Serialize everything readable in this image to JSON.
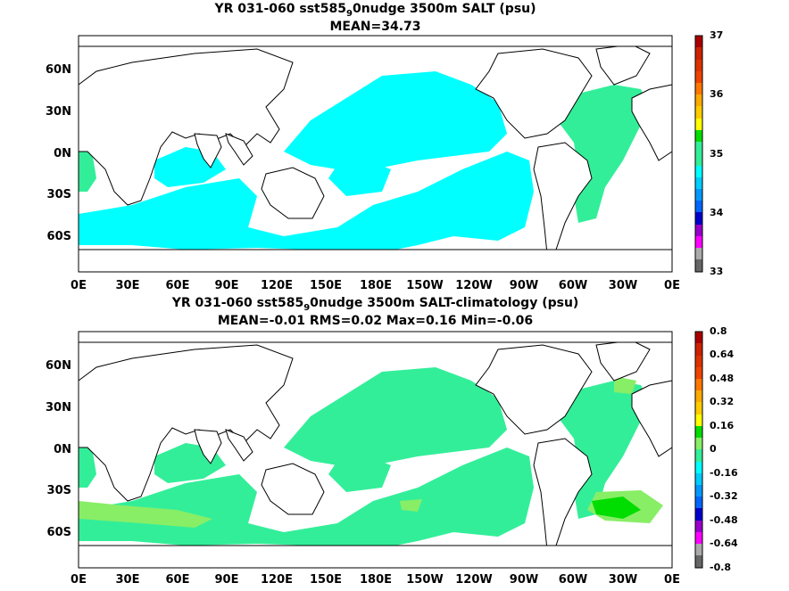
{
  "panels": [
    {
      "title_parts": [
        "YR 031-060 sst585",
        "9",
        "0nudge 3500m SALT (psu)"
      ],
      "subtitle": "MEAN=34.73",
      "colorbar_ticks": [
        "37",
        "36",
        "35",
        "34",
        "33"
      ]
    },
    {
      "title_parts": [
        "YR 031-060 sst585",
        "9",
        "0nudge 3500m SALT-climatology (psu)"
      ],
      "subtitle": "MEAN=-0.01   RMS=0.02   Max=0.16   Min=-0.06",
      "colorbar_ticks": [
        "0.8",
        "0.64",
        "0.48",
        "0.32",
        "0.16",
        "0",
        "-0.16",
        "-0.32",
        "-0.48",
        "-0.64",
        "-0.8"
      ]
    }
  ],
  "axes": {
    "lat_labels": [
      "60N",
      "30N",
      "0N",
      "30S",
      "60S"
    ],
    "lon_labels": [
      "0E",
      "30E",
      "60E",
      "90E",
      "120E",
      "150E",
      "180E",
      "150W",
      "120W",
      "90W",
      "60W",
      "30W",
      "0E"
    ]
  },
  "colors": {
    "cyan": "#00ffff",
    "seagreen": "#33ee99",
    "lightgreen": "#88ee66",
    "green": "#00dd00",
    "land": "#ffffff",
    "coast": "#000000"
  },
  "chart_data": [
    {
      "type": "heatmap",
      "title": "YR 031-060 sst585 9 0nudge 3500m SALT (psu)",
      "mean": 34.73,
      "colorbar_range": [
        33,
        37
      ],
      "colorbar_ticks": [
        33,
        34,
        35,
        36,
        37
      ],
      "xlim": [
        "0E",
        "0E"
      ],
      "ylim": [
        "90S",
        "90N"
      ]
    },
    {
      "type": "heatmap",
      "title": "YR 031-060 sst585 9 0nudge 3500m SALT-climatology (psu)",
      "mean": -0.01,
      "rms": 0.02,
      "max": 0.16,
      "min": -0.06,
      "colorbar_range": [
        -0.8,
        0.8
      ],
      "colorbar_ticks": [
        -0.8,
        -0.64,
        -0.48,
        -0.32,
        -0.16,
        0,
        0.16,
        0.32,
        0.48,
        0.64,
        0.8
      ],
      "xlim": [
        "0E",
        "0E"
      ],
      "ylim": [
        "90S",
        "90N"
      ]
    }
  ]
}
